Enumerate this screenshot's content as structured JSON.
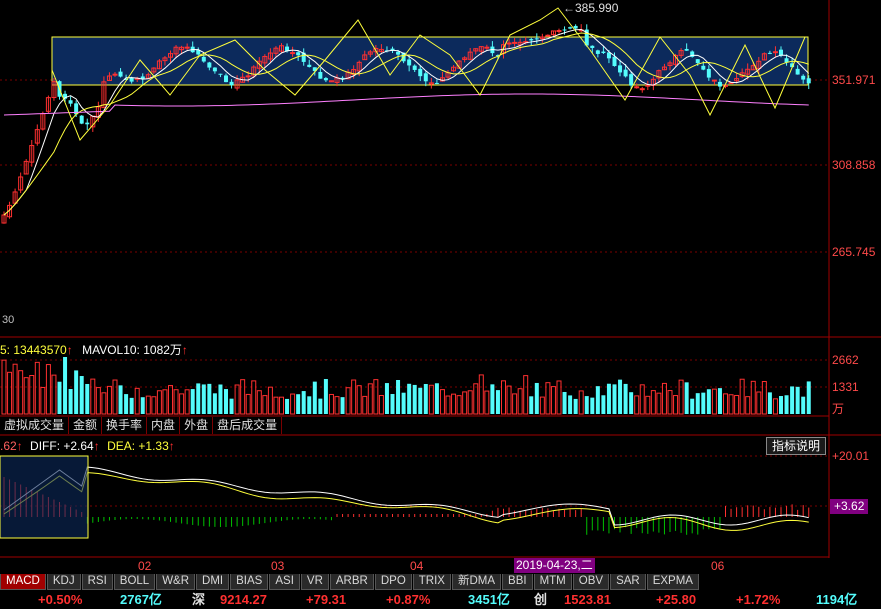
{
  "price_axis": {
    "labels": [
      "351.971",
      "308.858",
      "265.745"
    ],
    "low_label": "30",
    "high_marker": "385.990"
  },
  "volume_panel": {
    "ma5_text": "5: 13443570",
    "mavol10_text": "MAVOL10: 1082万",
    "axis_labels": [
      "2662",
      "1331"
    ],
    "unit": "万"
  },
  "volume_tabs": [
    "虚拟成交量",
    "金额",
    "换手率",
    "内盘",
    "外盘",
    "盘后成交量"
  ],
  "macd_panel": {
    "prefix": ".62",
    "diff_text": "DIFF: +2.64",
    "dea_text": "DEA: +1.33",
    "help_button": "指标说明",
    "axis_top": "+20.01",
    "current_value": "+3.62"
  },
  "time_axis": {
    "months": [
      "02",
      "03",
      "04",
      "06"
    ],
    "highlight_date": "2019-04-23,二"
  },
  "indicator_tabs": [
    "MACD",
    "KDJ",
    "RSI",
    "BOLL",
    "W&R",
    "DMI",
    "BIAS",
    "ASI",
    "VR",
    "ARBR",
    "DPO",
    "TRIX",
    "新DMA",
    "BBI",
    "MTM",
    "OBV",
    "SAR",
    "EXPMA"
  ],
  "status_bar": {
    "s1_pct": "+0.50%",
    "s1_amount": "2767亿",
    "s2_name": "深",
    "s2_value": "9214.27",
    "s2_change": "+79.31",
    "s2_pct": "+0.87%",
    "s2_amount": "3451亿",
    "s3_name": "创",
    "s3_value": "1523.81",
    "s3_change": "+25.80",
    "s3_pct": "+1.72%",
    "s3_amount": "1194亿"
  },
  "colors": {
    "up": "#ff3030",
    "down": "#54fcfc",
    "ma_white": "#ffffff",
    "ma_yellow": "#ffff3c",
    "ma_magenta": "#ff80ff",
    "box_fill": "#0c2a5c",
    "grid_red": "#7a0000",
    "macd_green": "#00c000"
  }
}
